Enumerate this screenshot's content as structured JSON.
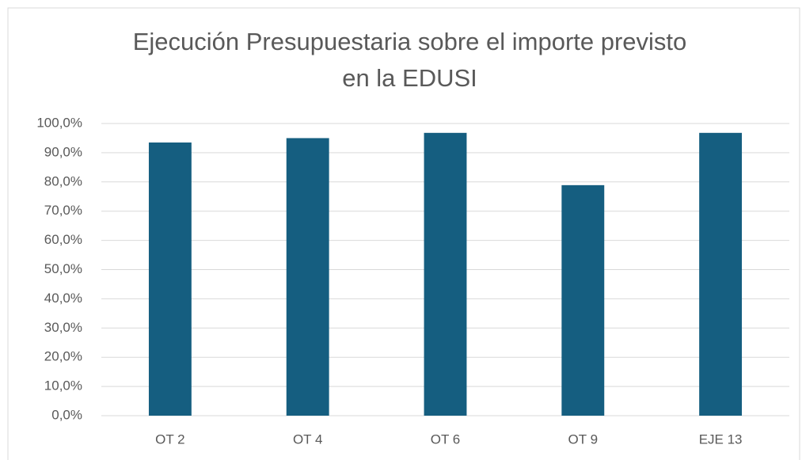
{
  "chart_data": {
    "type": "bar",
    "title": "Ejecución Presupuestaria sobre el importe previsto en la EDUSI",
    "categories": [
      "OT 2",
      "OT 4",
      "OT 6",
      "OT 9",
      "EJE 13"
    ],
    "values": [
      93.5,
      95,
      96.8,
      78.9,
      96.8
    ],
    "color": "#155e80",
    "ylim": [
      0,
      100
    ],
    "yticks": [
      {
        "value": 0,
        "label": "0,0%"
      },
      {
        "value": 10,
        "label": "10,0%"
      },
      {
        "value": 20,
        "label": "20,0%"
      },
      {
        "value": 30,
        "label": "30,0%"
      },
      {
        "value": 40,
        "label": "40,0%"
      },
      {
        "value": 50,
        "label": "50,0%"
      },
      {
        "value": 60,
        "label": "60,0%"
      },
      {
        "value": 70,
        "label": "70,0%"
      },
      {
        "value": 80,
        "label": "80,0%"
      },
      {
        "value": 90,
        "label": "90,0%"
      },
      {
        "value": 100,
        "label": "100,0%"
      }
    ],
    "grid": true
  }
}
